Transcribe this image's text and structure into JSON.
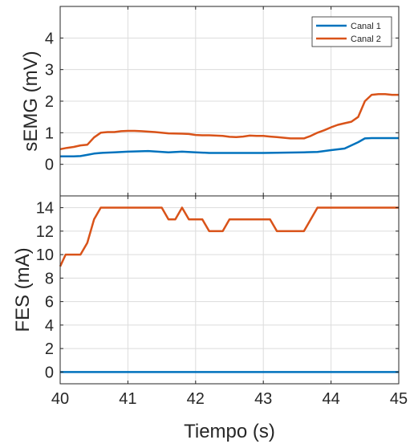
{
  "chart_data": [
    {
      "type": "line",
      "ylabel": "sEMG (mV)",
      "xlim": [
        40,
        45
      ],
      "ylim": [
        -1,
        5
      ],
      "yticks": [
        0,
        1,
        2,
        3,
        4
      ],
      "xticks": [
        40,
        41,
        42,
        43,
        44,
        45
      ],
      "grid": true,
      "legend_position": "top-right",
      "series": [
        {
          "name": "Canal 1",
          "color": "#0072BD",
          "x": [
            40,
            40.2,
            40.3,
            40.4,
            40.5,
            40.6,
            40.8,
            41,
            41.3,
            41.6,
            41.8,
            42,
            42.2,
            42.5,
            43,
            43.3,
            43.6,
            43.8,
            44,
            44.2,
            44.4,
            44.5,
            44.6,
            45
          ],
          "y": [
            0.25,
            0.25,
            0.26,
            0.3,
            0.34,
            0.36,
            0.38,
            0.4,
            0.42,
            0.38,
            0.4,
            0.38,
            0.36,
            0.36,
            0.36,
            0.37,
            0.38,
            0.39,
            0.45,
            0.5,
            0.7,
            0.82,
            0.83,
            0.83
          ]
        },
        {
          "name": "Canal 2",
          "color": "#D95319",
          "x": [
            40,
            40.1,
            40.2,
            40.3,
            40.4,
            40.5,
            40.6,
            40.7,
            40.8,
            40.9,
            41,
            41.1,
            41.2,
            41.4,
            41.6,
            41.8,
            41.9,
            42,
            42.1,
            42.2,
            42.4,
            42.5,
            42.6,
            42.7,
            42.8,
            42.9,
            43,
            43.1,
            43.2,
            43.4,
            43.6,
            43.7,
            43.8,
            43.9,
            44,
            44.1,
            44.2,
            44.3,
            44.4,
            44.5,
            44.6,
            44.7,
            44.8,
            44.9,
            45
          ],
          "y": [
            0.48,
            0.52,
            0.55,
            0.6,
            0.62,
            0.85,
            1.0,
            1.02,
            1.02,
            1.05,
            1.06,
            1.06,
            1.05,
            1.02,
            0.98,
            0.97,
            0.96,
            0.93,
            0.92,
            0.92,
            0.9,
            0.87,
            0.86,
            0.88,
            0.91,
            0.9,
            0.9,
            0.88,
            0.86,
            0.82,
            0.82,
            0.9,
            1.0,
            1.08,
            1.17,
            1.25,
            1.3,
            1.35,
            1.5,
            2.0,
            2.2,
            2.22,
            2.22,
            2.2,
            2.2
          ]
        }
      ]
    },
    {
      "type": "line",
      "ylabel": "FES (mA)",
      "xlabel": "Tiempo (s)",
      "xlim": [
        40,
        45
      ],
      "ylim": [
        -1,
        15
      ],
      "yticks": [
        0,
        2,
        4,
        6,
        8,
        10,
        12,
        14
      ],
      "xticks": [
        40,
        41,
        42,
        43,
        44,
        45
      ],
      "grid": true,
      "series": [
        {
          "color": "#0072BD",
          "x": [
            40,
            45
          ],
          "y": [
            0,
            0
          ]
        },
        {
          "color": "#D95319",
          "x": [
            40,
            40.08,
            40.3,
            40.4,
            40.5,
            40.6,
            41.5,
            41.6,
            41.7,
            41.8,
            41.9,
            42.1,
            42.2,
            42.4,
            42.5,
            43.1,
            43.2,
            43.6,
            43.8,
            45
          ],
          "y": [
            9,
            10,
            10,
            11,
            13,
            14,
            14,
            13,
            13,
            14,
            13,
            13,
            12,
            12,
            13,
            13,
            12,
            12,
            14,
            14
          ]
        }
      ]
    }
  ]
}
